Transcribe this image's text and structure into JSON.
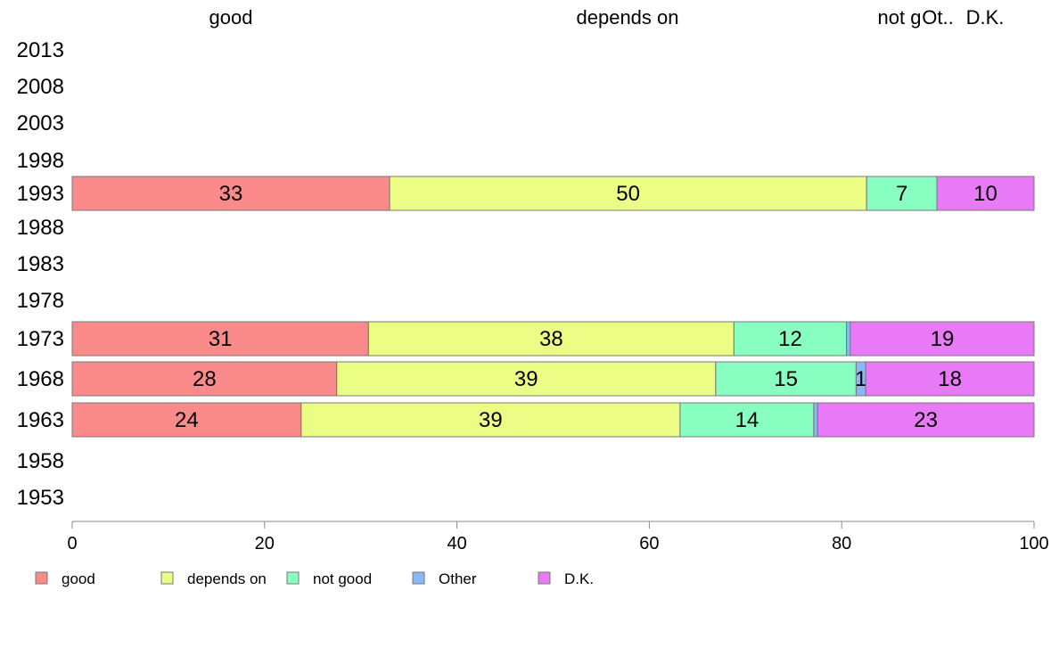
{
  "chart_data": {
    "type": "bar",
    "orientation": "horizontal",
    "stacked": true,
    "column_headers": [
      {
        "text": "good"
      },
      {
        "text": "depends on"
      },
      {
        "text": "not g"
      },
      {
        "text": "Ot.."
      },
      {
        "text": "D.K."
      }
    ],
    "categories": [
      "2013",
      "2008",
      "2003",
      "1998",
      "1993",
      "1988",
      "1983",
      "1978",
      "1973",
      "1968",
      "1963",
      "1958",
      "1953"
    ],
    "series": [
      {
        "name": "good",
        "color": "#fb8a8a",
        "values": [
          null,
          null,
          null,
          null,
          33,
          null,
          null,
          null,
          30.8,
          27.5,
          23.8,
          null,
          null
        ],
        "labels": [
          "",
          "",
          "",
          "",
          "33",
          "",
          "",
          "",
          "31",
          "28",
          "24",
          "",
          ""
        ]
      },
      {
        "name": "depends on",
        "color": "#ecfd86",
        "values": [
          null,
          null,
          null,
          null,
          49.6,
          null,
          null,
          null,
          38,
          39.4,
          39.4,
          null,
          null
        ],
        "labels": [
          "",
          "",
          "",
          "",
          "50",
          "",
          "",
          "",
          "38",
          "39",
          "39",
          "",
          ""
        ]
      },
      {
        "name": "not good",
        "color": "#88ffc0",
        "values": [
          null,
          null,
          null,
          null,
          7.3,
          null,
          null,
          null,
          11.7,
          14.6,
          13.9,
          null,
          null
        ],
        "labels": [
          "",
          "",
          "",
          "",
          "7",
          "",
          "",
          "",
          "12",
          "15",
          "14",
          "",
          ""
        ]
      },
      {
        "name": "Other",
        "color": "#8ab8f7",
        "values": [
          null,
          null,
          null,
          null,
          0,
          null,
          null,
          null,
          0.4,
          1,
          0.4,
          null,
          null
        ],
        "labels": [
          "",
          "",
          "",
          "",
          "",
          "",
          "",
          "",
          "",
          "1",
          "",
          "",
          ""
        ]
      },
      {
        "name": "D.K.",
        "color": "#e97af7",
        "values": [
          null,
          null,
          null,
          null,
          10.1,
          null,
          null,
          null,
          19.1,
          17.5,
          22.5,
          null,
          null
        ],
        "labels": [
          "",
          "",
          "",
          "",
          "10",
          "",
          "",
          "",
          "19",
          "18",
          "23",
          "",
          ""
        ]
      }
    ],
    "xlim": [
      0,
      100
    ],
    "x_ticks": [
      "0",
      "20",
      "40",
      "60",
      "80",
      "100"
    ],
    "legend_position": "bottom-left",
    "grid": false,
    "axis_color": "#888888",
    "bar_border_color": "#777777"
  }
}
